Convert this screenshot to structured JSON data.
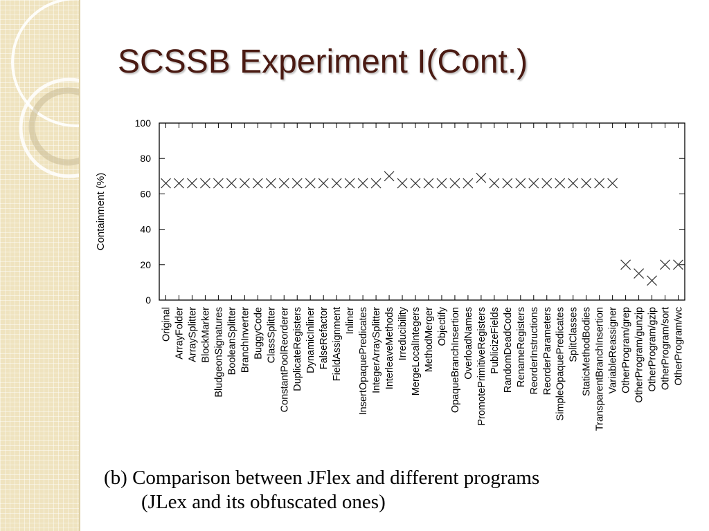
{
  "slide": {
    "title": "SCSSB Experiment I(Cont.)",
    "caption_line1": "(b) Comparison between JFlex and different programs",
    "caption_line2": "(JLex and its obfuscated ones)"
  },
  "chart_data": {
    "type": "scatter",
    "marker": "cross",
    "xlabel": "",
    "ylabel": "Containment (%)",
    "ylim": [
      0,
      100
    ],
    "yticks": [
      0,
      20,
      40,
      60,
      80,
      100
    ],
    "grid": false,
    "legend": "none",
    "categories": [
      "Original",
      "ArrayFolder",
      "ArraySplitter",
      "BlockMarker",
      "BludgeonSignatures",
      "BooleanSplitter",
      "BranchInverter",
      "BuggyCode",
      "ClassSplitter",
      "ConstantPoolReorderer",
      "DuplicateRegisters",
      "DynamicInliner",
      "FalseRefactor",
      "FieldAssignment",
      "Inliner",
      "InsertOpaquePredicates",
      "IntegerArraySplitter",
      "InterleaveMethods",
      "Irreducibility",
      "MergeLocalIntegers",
      "MethodMerger",
      "Objectify",
      "OpaqueBranchInsertion",
      "OverloadNames",
      "PromotePrimitiveRegisters",
      "PublicizeFields",
      "RandomDeadCode",
      "RenameRegisters",
      "ReorderInstructions",
      "ReorderParameters",
      "SimpleOpaquePredicates",
      "SplitClasses",
      "StaticMethodBodies",
      "TransparentBranchInsertion",
      "VariableReassigner",
      "OtherProgram/grep",
      "OtherProgram/gunzip",
      "OtherProgram/gzip",
      "OtherProgram/sort",
      "OtherProgram/wc"
    ],
    "values": [
      66,
      66,
      66,
      66,
      66,
      66,
      66,
      66,
      66,
      66,
      66,
      66,
      66,
      66,
      66,
      66,
      66,
      70,
      66,
      66,
      66,
      66,
      66,
      66,
      69,
      66,
      66,
      66,
      66,
      66,
      66,
      66,
      66,
      66,
      66,
      20,
      15,
      11,
      20,
      20
    ]
  },
  "colors": {
    "title": "#4a1a12",
    "border_background": "#efe3bf",
    "marker": "#333333"
  }
}
